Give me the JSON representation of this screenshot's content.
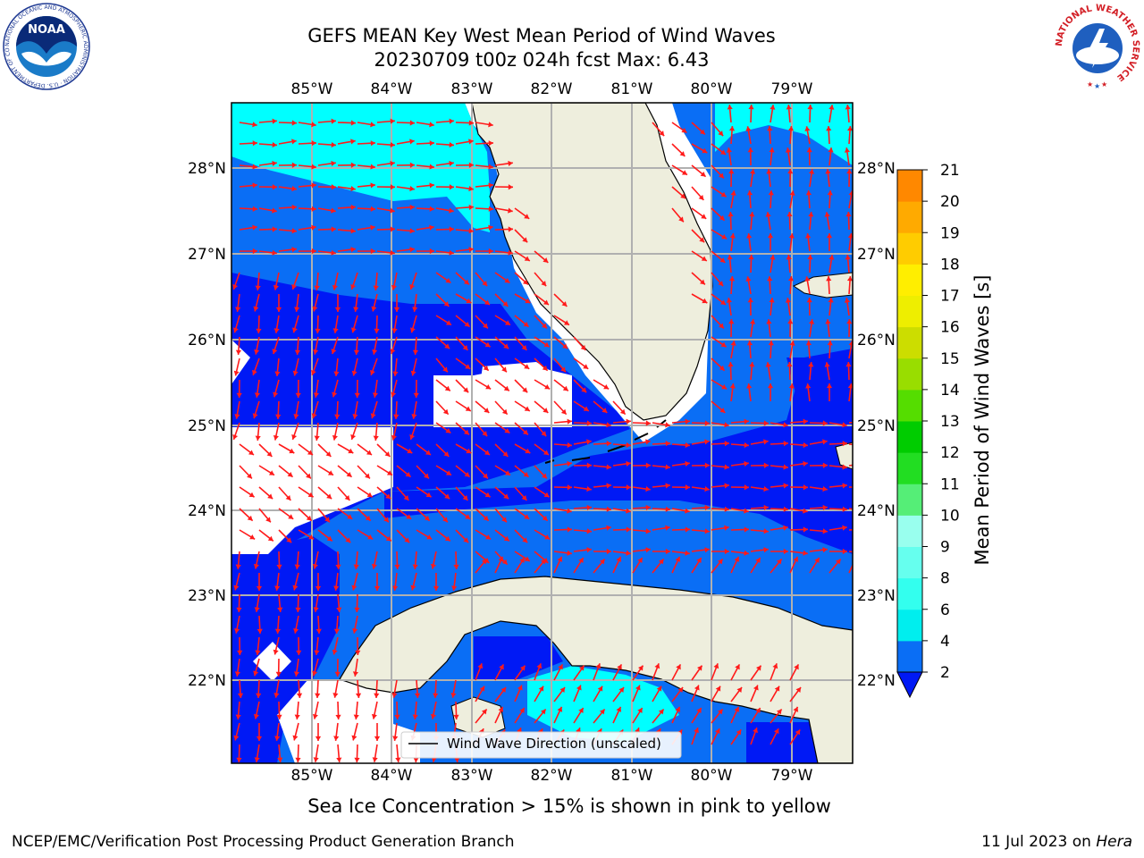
{
  "header": {
    "title_line1": "GEFS MEAN Key West Mean Period of Wind Waves",
    "title_line2": "20230709 t00z 024h fcst   Max: 6.43"
  },
  "logos": {
    "noaa": {
      "text": "NOAA",
      "ring_text": "NATIONAL OCEANIC AND ATMOSPHERIC ADMINISTRATION · U.S. DEPARTMENT OF COMMERCE"
    },
    "nws": {
      "ring_text": "NATIONAL WEATHER SERVICE"
    }
  },
  "map": {
    "lon_labels": [
      "85°W",
      "84°W",
      "83°W",
      "82°W",
      "81°W",
      "80°W",
      "79°W"
    ],
    "lat_labels": [
      "28°N",
      "27°N",
      "26°N",
      "25°N",
      "24°N",
      "23°N",
      "22°N"
    ],
    "legend_label": "Wind Wave Direction (unscaled)",
    "colors": {
      "land": "#eeeedd",
      "band_2_4": "#0a6ef5",
      "band_under_2": "#0019f5",
      "band_4_6": "#00ffff",
      "arrow": "#ff1a1a",
      "grid": "#b0b0b0"
    }
  },
  "colorbar": {
    "label": "Mean Period of Wind Waves [s]",
    "ticks": [
      "2",
      "4",
      "6",
      "8",
      "9",
      "10",
      "11",
      "12",
      "13",
      "14",
      "15",
      "16",
      "17",
      "18",
      "19",
      "20",
      "21"
    ],
    "colors": [
      "#0a6ef5",
      "#00eeee",
      "#33ffee",
      "#66ffee",
      "#99ffee",
      "#55ee77",
      "#22dd22",
      "#00cc00",
      "#55dd00",
      "#99dd00",
      "#ccdd00",
      "#eeee00",
      "#ffee00",
      "#ffcc00",
      "#ffaa00",
      "#ff8800",
      "#ff6600",
      "#ff3300",
      "#ff1a00",
      "#ff0000"
    ],
    "underflow_color": "#0019f5"
  },
  "footer": {
    "caption": "Sea Ice Concentration > 15% is shown in pink to yellow",
    "left": "NCEP/EMC/Verification Post Processing Product Generation Branch",
    "date": "11 Jul 2023 on",
    "host": "Hera"
  }
}
